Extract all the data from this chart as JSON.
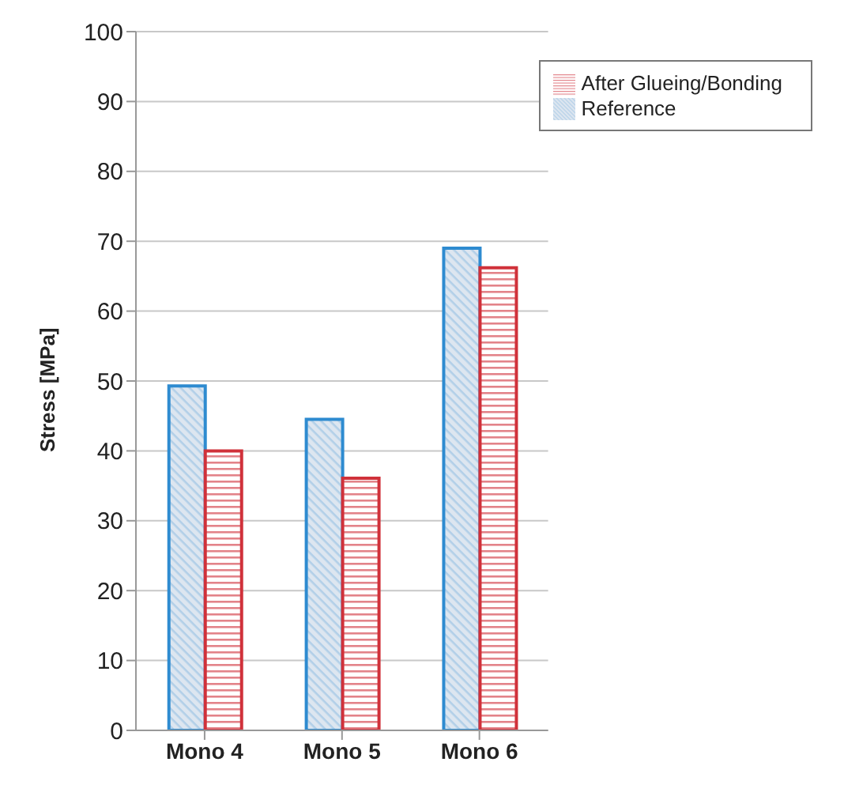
{
  "chart_data": {
    "type": "bar",
    "ylabel": "Stress [MPa]",
    "categories": [
      "Mono 4",
      "Mono 5",
      "Mono 6"
    ],
    "series": [
      {
        "name": "Reference",
        "color": "#2e8bd0",
        "values": [
          49.3,
          44.5,
          69
        ]
      },
      {
        "name": "After Glueing/Bonding",
        "color": "#d0313a",
        "values": [
          40,
          36.1,
          66.2
        ]
      }
    ],
    "ylim": [
      0,
      100
    ],
    "yticks": [
      0,
      10,
      20,
      30,
      40,
      50,
      60,
      70,
      80,
      90,
      100
    ],
    "grid": "y",
    "legend": "top right"
  }
}
